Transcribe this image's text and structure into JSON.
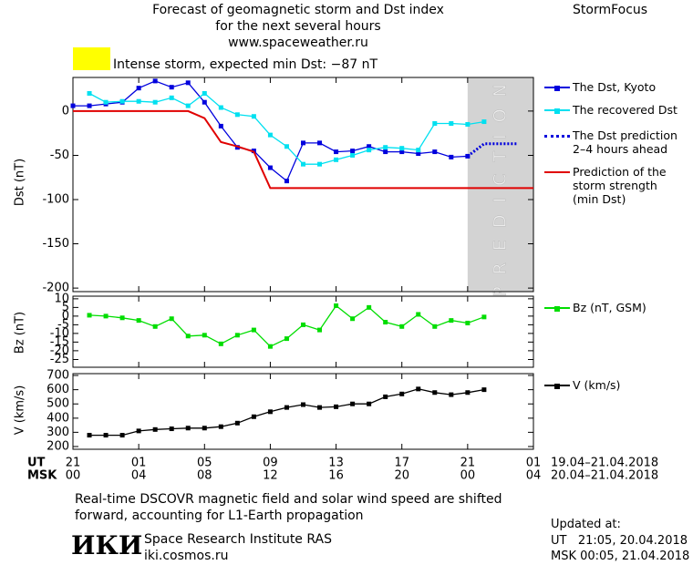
{
  "header": {
    "title": "Forecast of geomagnetic storm and Dst index\nfor the next several hours\nwww.spaceweather.ru",
    "brand": "StormFocus"
  },
  "footer": {
    "note": "Real-time DSCOVR magnetic field and solar wind speed are shifted\nforward, accounting for L1-Earth propagation",
    "logo": "ИКИ",
    "institute": "Space Research Institute RAS",
    "site": "iki.cosmos.ru",
    "updated_title": "Updated at:",
    "updated_ut": "UT   21:05, 20.04.2018",
    "updated_msk": "MSK 00:05, 21.04.2018"
  },
  "time_axis": {
    "xlim": [
      0,
      28
    ],
    "ut_label": "UT",
    "ut_range": "19.04–21.04.2018",
    "ut_ticks": [
      {
        "value": 0,
        "label": "21"
      },
      {
        "value": 4,
        "label": "01"
      },
      {
        "value": 8,
        "label": "05"
      },
      {
        "value": 12,
        "label": "09"
      },
      {
        "value": 16,
        "label": "13"
      },
      {
        "value": 20,
        "label": "17"
      },
      {
        "value": 24,
        "label": "21"
      },
      {
        "value": 28,
        "label": "01"
      }
    ],
    "msk_label": "MSK",
    "msk_range": "20.04–21.04.2018",
    "msk_ticks": [
      {
        "value": 0,
        "label": "00"
      },
      {
        "value": 4,
        "label": "04"
      },
      {
        "value": 8,
        "label": "08"
      },
      {
        "value": 12,
        "label": "12"
      },
      {
        "value": 16,
        "label": "16"
      },
      {
        "value": 20,
        "label": "20"
      },
      {
        "value": 24,
        "label": "00"
      },
      {
        "value": 28,
        "label": "04"
      }
    ]
  },
  "chart_data": [
    {
      "type": "line",
      "ylabel": "Dst (nT)",
      "ylim": [
        -204,
        38
      ],
      "yticks": [
        0,
        -50,
        -100,
        -150,
        -200
      ],
      "annotation": "Intense storm, expected min Dst: −87 nT",
      "annotation_color": "#ffff00",
      "prediction_zone": {
        "from": 24,
        "to": 28,
        "label": "PREDICTION",
        "color": "#d3d3d3"
      },
      "series": [
        {
          "name": "The Dst, Kyoto",
          "color": "#0000dd",
          "marker": "square",
          "x": [
            0,
            1,
            2,
            3,
            4,
            5,
            6,
            7,
            8,
            9,
            10,
            11,
            12,
            13,
            14,
            15,
            16,
            17,
            18,
            19,
            20,
            21,
            22,
            23,
            24
          ],
          "values": [
            6,
            6,
            8,
            10,
            26,
            34,
            27,
            32,
            10,
            -17,
            -41,
            -45,
            -64,
            -79,
            -36,
            -36,
            -46,
            -45,
            -40,
            -46,
            -46,
            -48,
            -46,
            -52,
            -51
          ]
        },
        {
          "name": "The recovered Dst",
          "color": "#00e0f0",
          "marker": "square",
          "x": [
            1,
            2,
            3,
            4,
            5,
            6,
            7,
            8,
            9,
            10,
            11,
            12,
            13,
            14,
            15,
            16,
            17,
            18,
            19,
            20,
            21,
            22,
            23,
            24,
            25
          ],
          "values": [
            20,
            10,
            11,
            11,
            10,
            15,
            6,
            20,
            4,
            -4,
            -6,
            -27,
            -40,
            -60,
            -60,
            -55,
            -50,
            -44,
            -41,
            -42,
            -44,
            -14,
            -14,
            -15,
            -12
          ]
        },
        {
          "name": "The Dst prediction\n2–4 hours ahead",
          "color": "#0000dd",
          "dash": "dotted",
          "x": [
            24,
            25,
            27
          ],
          "values": [
            -51,
            -37,
            -37
          ]
        },
        {
          "name": "Prediction of the\nstorm strength\n(min Dst)",
          "color": "#e00000",
          "x": [
            0,
            7,
            8,
            9,
            10,
            11,
            12,
            28
          ],
          "values": [
            0,
            0,
            -8,
            -35,
            -40,
            -46,
            -87,
            -87
          ]
        }
      ]
    },
    {
      "type": "line",
      "ylabel": "Bz (nT)",
      "ylim": [
        -29.5,
        11.5
      ],
      "yticks": [
        10,
        5,
        0,
        -5,
        -10,
        -15,
        -20,
        -25
      ],
      "series": [
        {
          "name": "Bz (nT, GSM)",
          "color": "#00dd00",
          "marker": "square",
          "x": [
            1,
            2,
            3,
            4,
            5,
            6,
            7,
            8,
            9,
            10,
            11,
            12,
            13,
            14,
            15,
            16,
            17,
            18,
            19,
            20,
            21,
            22,
            23,
            24,
            25
          ],
          "values": [
            0.5,
            0,
            -1,
            -2.5,
            -6,
            -1.5,
            -11.5,
            -11,
            -16,
            -11,
            -8,
            -17.5,
            -13,
            -5,
            -8,
            6,
            -1.5,
            5,
            -3.5,
            -6,
            1,
            -6,
            -2.5,
            -4,
            -0.5
          ]
        }
      ]
    },
    {
      "type": "line",
      "ylabel": "V (km/s)",
      "ylim": [
        181,
        713
      ],
      "yticks": [
        700,
        600,
        500,
        400,
        300,
        200
      ],
      "series": [
        {
          "name": "V (km/s)",
          "color": "#000000",
          "marker": "square",
          "x": [
            1,
            2,
            3,
            4,
            5,
            6,
            7,
            8,
            9,
            10,
            11,
            12,
            13,
            14,
            15,
            16,
            17,
            18,
            19,
            20,
            21,
            22,
            23,
            24,
            25
          ],
          "values": [
            280,
            280,
            280,
            310,
            320,
            325,
            330,
            330,
            340,
            365,
            410,
            445,
            475,
            495,
            475,
            480,
            500,
            500,
            550,
            570,
            605,
            580,
            565,
            580,
            600
          ]
        }
      ]
    }
  ]
}
